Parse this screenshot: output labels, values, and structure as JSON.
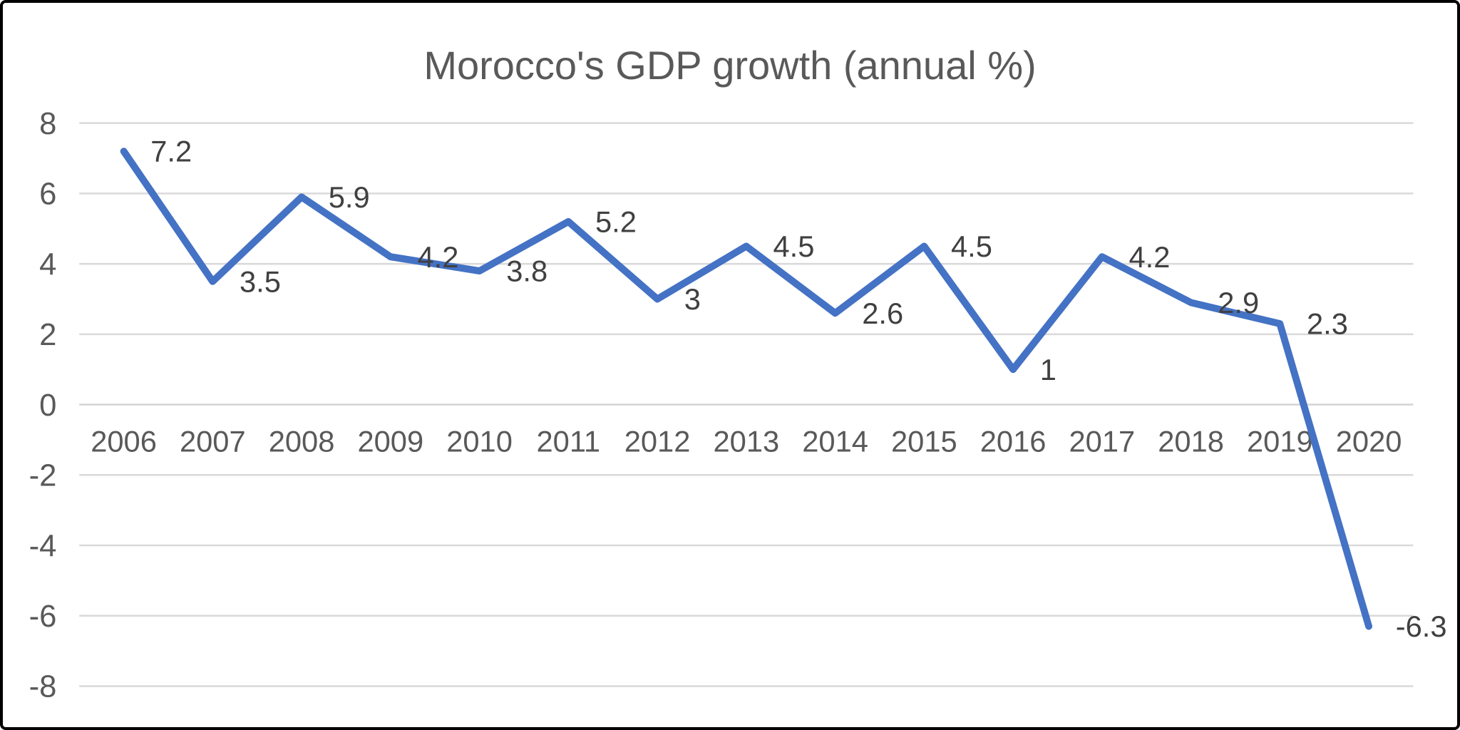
{
  "chart_data": {
    "type": "line",
    "title": "Morocco's GDP growth (annual %)",
    "categories": [
      "2006",
      "2007",
      "2008",
      "2009",
      "2010",
      "2011",
      "2012",
      "2013",
      "2014",
      "2015",
      "2016",
      "2017",
      "2018",
      "2019",
      "2020"
    ],
    "series": [
      {
        "name": "GDP growth (annual %)",
        "values": [
          7.2,
          3.5,
          5.9,
          4.2,
          3.8,
          5.2,
          3,
          4.5,
          2.6,
          4.5,
          1,
          4.2,
          2.9,
          2.3,
          -6.3
        ]
      }
    ],
    "data_labels": [
      "7.2",
      "3.5",
      "5.9",
      "4.2",
      "3.8",
      "5.2",
      "3",
      "4.5",
      "2.6",
      "4.5",
      "1",
      "4.2",
      "2.9",
      "2.3",
      "-6.3"
    ],
    "xlabel": "",
    "ylabel": "",
    "ylim": [
      -8,
      8
    ],
    "yticks": [
      8,
      6,
      4,
      2,
      0,
      -2,
      -4,
      -6,
      -8
    ],
    "grid": true,
    "legend": "none",
    "colors": {
      "line": "#4472C4",
      "gridline": "#D9D9D9",
      "zero_axis": "#D2D2D2",
      "axis_text": "#595959",
      "data_label_text": "#404040",
      "title_text": "#595959",
      "background": "#FFFFFF",
      "frame_border": "#000000"
    }
  }
}
